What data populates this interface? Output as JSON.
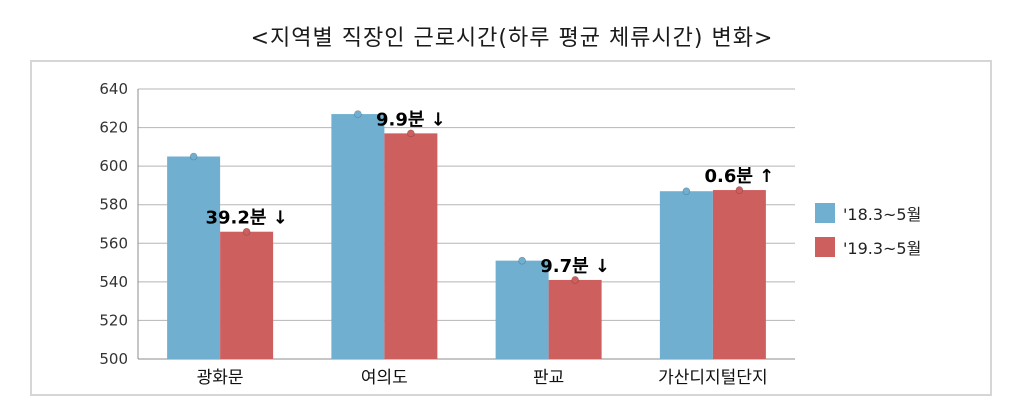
{
  "chart_data": {
    "type": "bar",
    "title": "<지역별 직장인 근로시간(하루 평균 체류시간) 변화>",
    "categories": [
      "광화문",
      "여의도",
      "판교",
      "가산디지털단지"
    ],
    "series": [
      {
        "name": "'18.3~5월",
        "color": "#70afd0",
        "values": [
          605,
          627,
          551,
          587
        ]
      },
      {
        "name": "'19.3~5월",
        "color": "#cd5f5f",
        "values": [
          566,
          617,
          541,
          587.6
        ]
      }
    ],
    "ylim": [
      500,
      640
    ],
    "yticks": [
      500,
      520,
      540,
      560,
      580,
      600,
      620,
      640
    ],
    "annotations": [
      "39.2분 ↓",
      "9.9분 ↓",
      "9.7분 ↓",
      "0.6분 ↑"
    ],
    "grid": true,
    "legend_position": "right"
  }
}
